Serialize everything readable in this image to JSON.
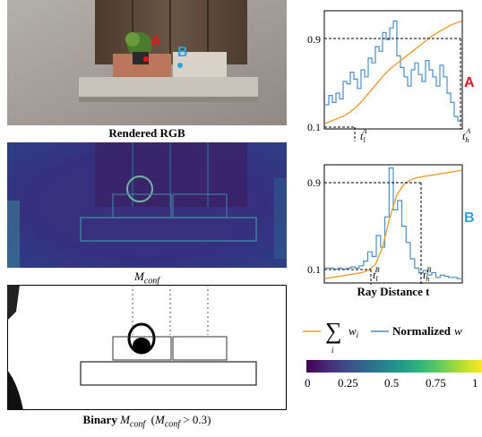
{
  "left_panels": {
    "rgb": {
      "caption": "Rendered RGB",
      "point_a_label": "A",
      "point_b_label": "B",
      "colors": {
        "a": "#e8141b",
        "b": "#2ea3e0"
      }
    },
    "conf": {
      "caption_symbol": "M",
      "caption_sub": "conf"
    },
    "binary": {
      "caption_prefix": "Binary",
      "caption_symbol": "M",
      "caption_sub": "conf",
      "caption_cond_open": "(",
      "caption_cond_symbol": "M",
      "caption_cond_sub": "conf",
      "caption_cond_rest": " > 0.3)"
    }
  },
  "plots": {
    "plot_a": {
      "label": "A",
      "label_color": "#e8141b",
      "y_ticks": [
        "0.9",
        "0.1"
      ],
      "t_low": {
        "main": "t",
        "sub": "l",
        "sup": "A"
      },
      "t_high": {
        "main": "t",
        "sub": "h",
        "sup": "A"
      }
    },
    "plot_b": {
      "label": "B",
      "label_color": "#2ea3e0",
      "y_ticks": [
        "0.9",
        "0.1"
      ],
      "t_low": {
        "main": "t",
        "sub": "l",
        "sup": "B"
      },
      "t_high": {
        "main": "t",
        "sub": "h",
        "sup": "B"
      }
    },
    "xlabel": "Ray Distance t"
  },
  "legend": {
    "sum_symbol": "∑",
    "sum_index": "i",
    "sum_term_main": "w",
    "sum_term_sub": "i",
    "normalized_label": "Normalized",
    "normalized_symbol": "w",
    "colors": {
      "cumsum": "#f39c32",
      "normalized": "#4a8fc8"
    }
  },
  "colorbar": {
    "ticks": [
      "0",
      "0.25",
      "0.5",
      "0.75",
      "1"
    ]
  },
  "chart_data": [
    {
      "type": "line",
      "panel": "A",
      "ylim": [
        0,
        1
      ],
      "y_ticks": [
        0.1,
        0.9
      ],
      "series": [
        {
          "values_cumsum": [
            0.04,
            0.06,
            0.08,
            0.1,
            0.13,
            0.17,
            0.22,
            0.28,
            0.34,
            0.4,
            0.46,
            0.51,
            0.55,
            0.59,
            0.63,
            0.67,
            0.71,
            0.75,
            0.79,
            0.82,
            0.85,
            0.88,
            0.9,
            0.92
          ]
        },
        {
          "values_normalized": [
            0.2,
            0.28,
            0.22,
            0.3,
            0.25,
            0.4,
            0.38,
            0.48,
            0.42,
            0.34,
            0.5,
            0.44,
            0.6,
            0.56,
            0.7,
            0.66,
            0.82,
            0.76,
            0.86,
            0.92,
            0.62,
            0.52,
            0.44,
            0.36,
            0.5,
            0.56,
            0.46,
            0.4,
            0.58,
            0.5,
            0.44,
            0.36,
            0.54,
            0.44,
            0.3,
            0.22,
            0.1,
            0.06
          ]
        }
      ]
    },
    {
      "type": "line",
      "panel": "B",
      "ylim": [
        0,
        1
      ],
      "y_ticks": [
        0.1,
        0.9
      ],
      "series": [
        {
          "values_cumsum": [
            0.03,
            0.04,
            0.05,
            0.06,
            0.07,
            0.08,
            0.1,
            0.15,
            0.3,
            0.55,
            0.75,
            0.84,
            0.88,
            0.9,
            0.91,
            0.92,
            0.93,
            0.94,
            0.95,
            0.96
          ]
        },
        {
          "values_normalized": [
            0.12,
            0.12,
            0.11,
            0.12,
            0.11,
            0.12,
            0.13,
            0.12,
            0.14,
            0.18,
            0.26,
            0.22,
            0.4,
            0.3,
            0.56,
            0.98,
            0.62,
            0.7,
            0.48,
            0.34,
            0.2,
            0.12,
            0.08,
            0.1,
            0.06,
            0.08,
            0.04,
            0.06,
            0.05,
            0.04,
            0.04,
            0.03
          ]
        }
      ]
    }
  ]
}
